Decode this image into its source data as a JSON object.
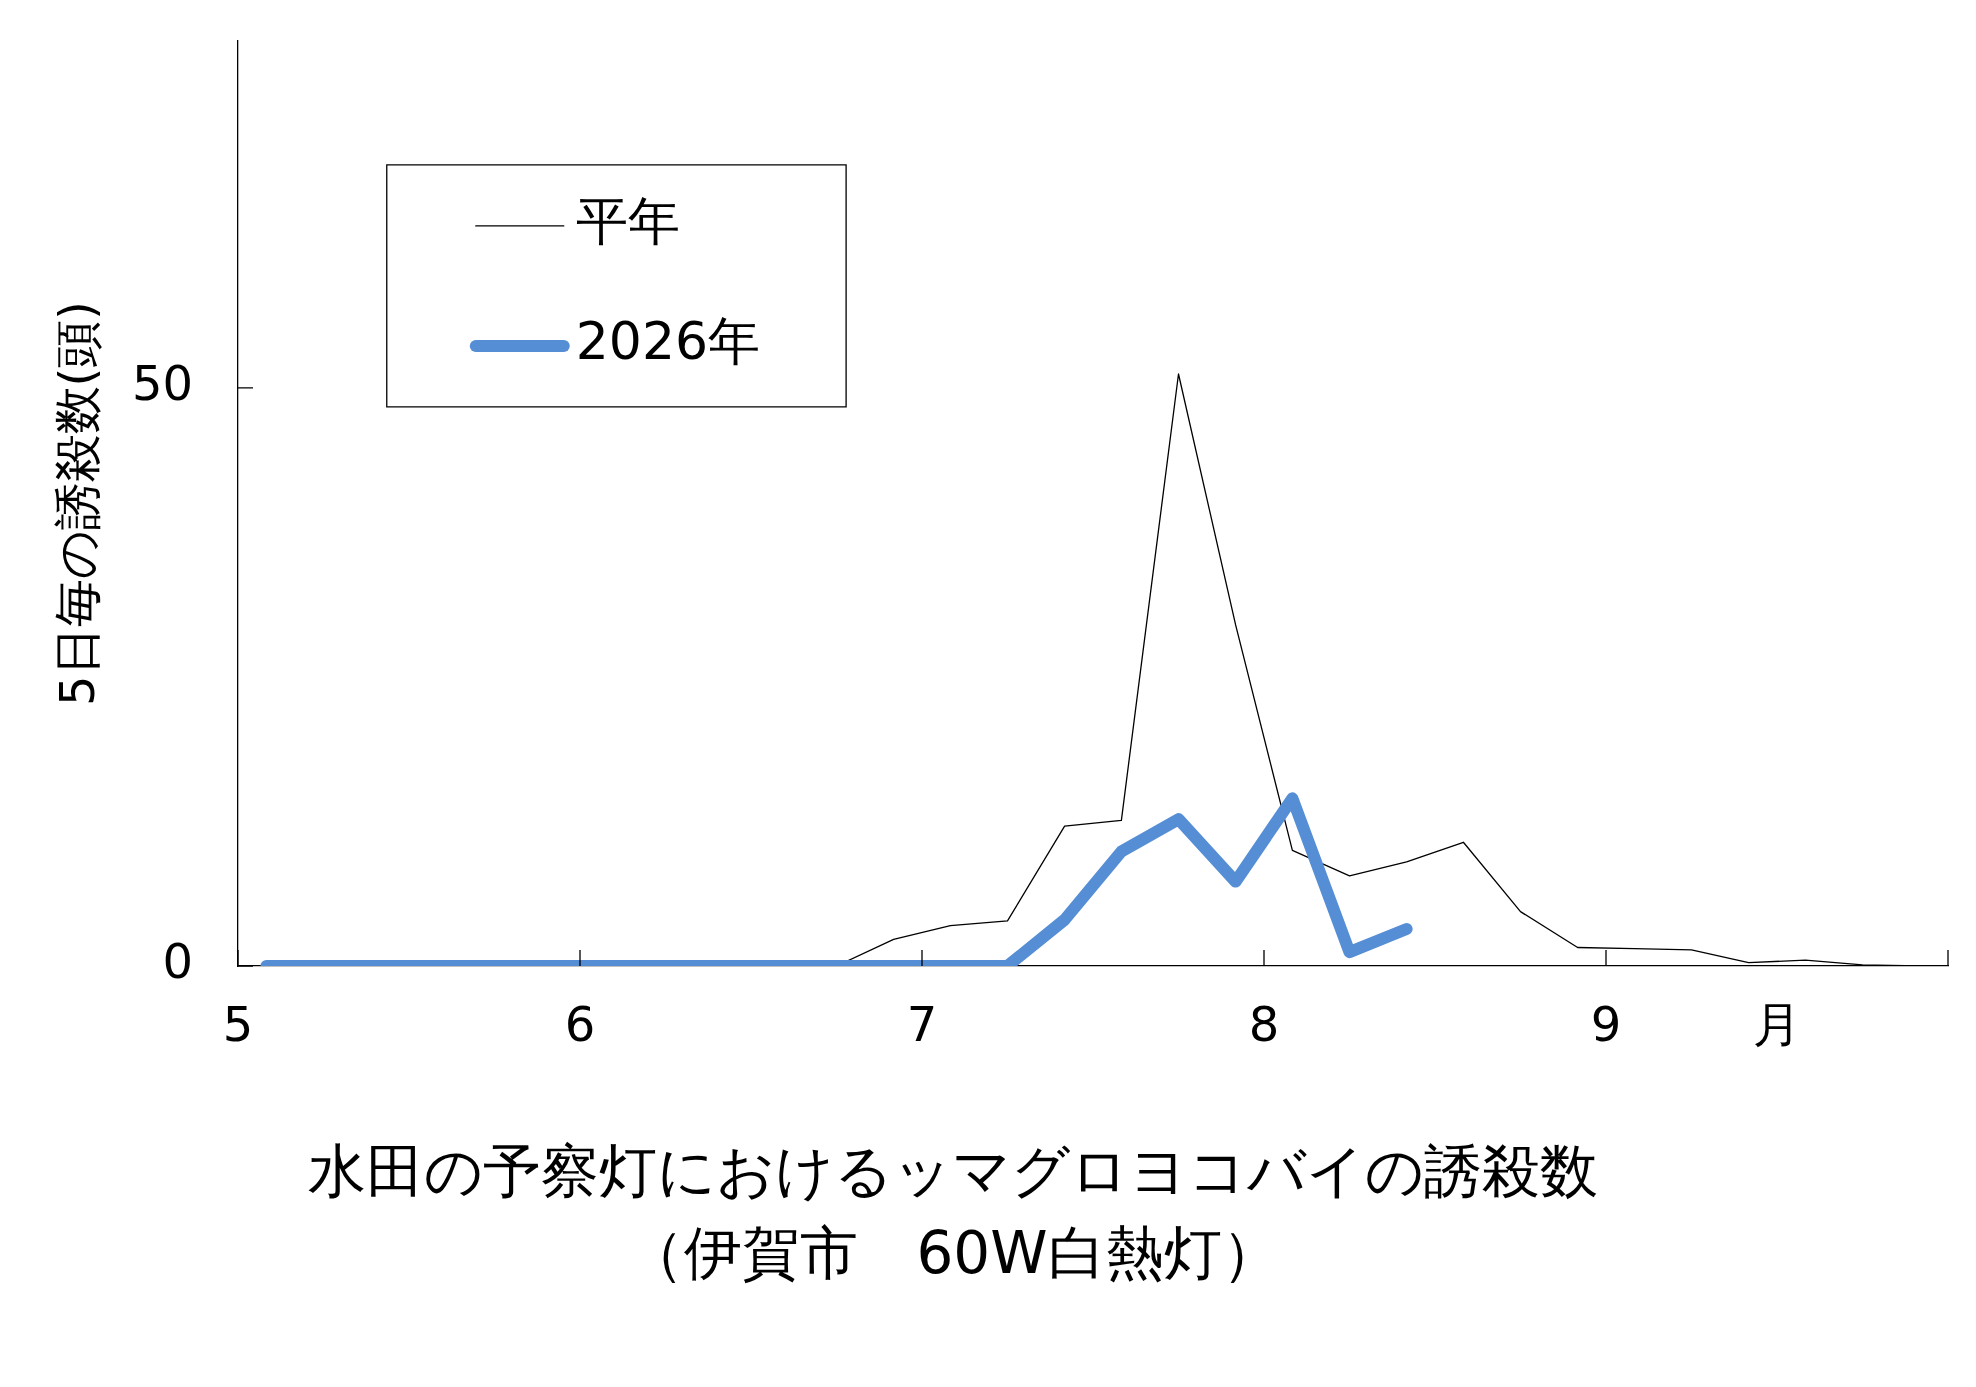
{
  "chart_data": {
    "type": "line",
    "title": "水田の予察灯におけるッマグロヨコバイの誘殺数",
    "subtitle": "（伊賀市　60W白熱灯）",
    "xlabel": "月",
    "ylabel": "5日毎の誘殺数(頭)",
    "x": [
      5.083,
      5.25,
      5.417,
      5.583,
      5.75,
      5.917,
      6.083,
      6.25,
      6.417,
      6.583,
      6.75,
      6.917,
      7.083,
      7.25,
      7.417,
      7.583,
      7.75,
      7.917,
      8.083,
      8.25,
      8.417,
      8.583,
      8.75,
      8.917,
      9.083,
      9.25,
      9.417,
      9.583,
      9.75,
      9.917
    ],
    "series": [
      {
        "name": "平年",
        "color": "#000000",
        "values": [
          null,
          null,
          null,
          null,
          null,
          null,
          null,
          null,
          null,
          null,
          0,
          2.3,
          3.5,
          3.9,
          12.1,
          12.6,
          51.2,
          29.5,
          10.0,
          7.8,
          9.0,
          10.7,
          4.7,
          1.6,
          1.5,
          1.4,
          0.3,
          0.5,
          0.1,
          0
        ]
      },
      {
        "name": "2026年",
        "color": "#558ed5",
        "values": [
          0,
          0,
          0,
          0,
          0,
          0,
          0,
          0,
          0,
          0,
          0,
          0,
          0,
          0,
          4.0,
          9.9,
          12.7,
          7.3,
          14.5,
          1.2,
          3.2,
          null,
          null,
          null,
          null,
          null,
          null,
          null,
          null,
          null
        ]
      }
    ],
    "xlim": [
      5,
      10
    ],
    "xticks": [
      5,
      6,
      7,
      8,
      9,
      {
        "value": 10,
        "label": null
      }
    ],
    "ylim": [
      0,
      80
    ],
    "yticks": [
      0,
      50
    ],
    "grid": false,
    "legend": "top left",
    "marker": "none"
  }
}
